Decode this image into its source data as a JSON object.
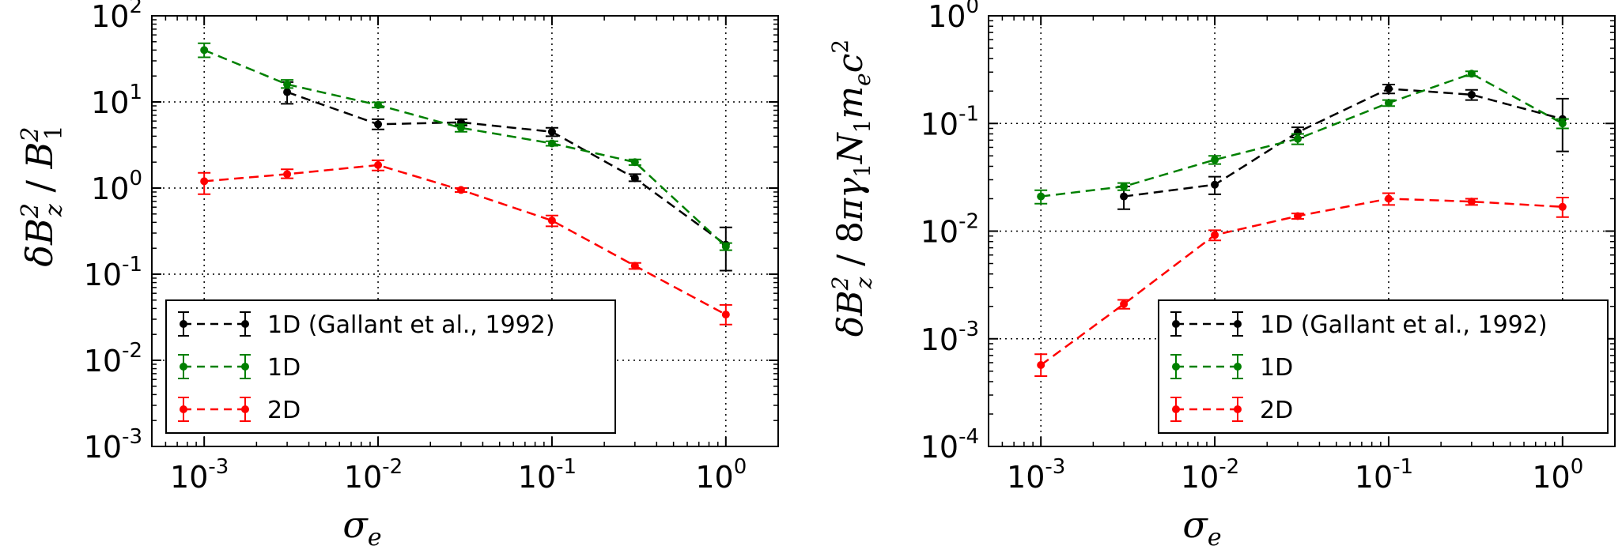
{
  "chart_data": [
    {
      "type": "line",
      "title": "",
      "xlabel": "σ_e",
      "ylabel": "δB_z^2 / B_1^2",
      "xscale": "log",
      "yscale": "log",
      "xlim": [
        0.0005,
        2
      ],
      "ylim": [
        0.001,
        100
      ],
      "x_ticks": [
        {
          "value": 0.001,
          "base": "10",
          "exp": "-3"
        },
        {
          "value": 0.01,
          "base": "10",
          "exp": "-2"
        },
        {
          "value": 0.1,
          "base": "10",
          "exp": "-1"
        },
        {
          "value": 1,
          "base": "10",
          "exp": "0"
        }
      ],
      "y_ticks": [
        {
          "value": 0.001,
          "base": "10",
          "exp": "-3"
        },
        {
          "value": 0.01,
          "base": "10",
          "exp": "-2"
        },
        {
          "value": 0.1,
          "base": "10",
          "exp": "-1"
        },
        {
          "value": 1,
          "base": "10",
          "exp": "0"
        },
        {
          "value": 10,
          "base": "10",
          "exp": "1"
        },
        {
          "value": 100,
          "base": "10",
          "exp": "2"
        }
      ],
      "grid": true,
      "legend_position": "lower-left",
      "series": [
        {
          "name": "1D (Gallant et al., 1992)",
          "color": "#000000",
          "style": "dashed",
          "points": [
            {
              "x": 0.003,
              "y": 13,
              "lo": 9.5,
              "hi": 17
            },
            {
              "x": 0.01,
              "y": 5.5,
              "lo": 4.8,
              "hi": 6.3
            },
            {
              "x": 0.03,
              "y": 5.8,
              "lo": 5.3,
              "hi": 6.3
            },
            {
              "x": 0.1,
              "y": 4.5,
              "lo": 4.0,
              "hi": 5.0
            },
            {
              "x": 0.3,
              "y": 1.3,
              "lo": 1.2,
              "hi": 1.45
            },
            {
              "x": 1.0,
              "y": 0.22,
              "lo": 0.11,
              "hi": 0.35
            }
          ]
        },
        {
          "name": "1D",
          "color": "#008000",
          "style": "dashed",
          "points": [
            {
              "x": 0.001,
              "y": 40,
              "lo": 33,
              "hi": 48
            },
            {
              "x": 0.003,
              "y": 16,
              "lo": 14.5,
              "hi": 18
            },
            {
              "x": 0.01,
              "y": 9.2,
              "lo": 8.6,
              "hi": 9.9
            },
            {
              "x": 0.03,
              "y": 5.0,
              "lo": 4.5,
              "hi": 5.5
            },
            {
              "x": 0.1,
              "y": 3.3,
              "lo": 3.1,
              "hi": 3.5
            },
            {
              "x": 0.3,
              "y": 2.0,
              "lo": 1.85,
              "hi": 2.15
            },
            {
              "x": 1.0,
              "y": 0.21,
              "lo": 0.19,
              "hi": 0.23
            }
          ]
        },
        {
          "name": "2D",
          "color": "#ff0000",
          "style": "dashed",
          "points": [
            {
              "x": 0.001,
              "y": 1.2,
              "lo": 0.85,
              "hi": 1.5
            },
            {
              "x": 0.003,
              "y": 1.45,
              "lo": 1.3,
              "hi": 1.65
            },
            {
              "x": 0.01,
              "y": 1.85,
              "lo": 1.6,
              "hi": 2.1
            },
            {
              "x": 0.03,
              "y": 0.95,
              "lo": 0.9,
              "hi": 1.0
            },
            {
              "x": 0.1,
              "y": 0.42,
              "lo": 0.36,
              "hi": 0.48
            },
            {
              "x": 0.3,
              "y": 0.125,
              "lo": 0.115,
              "hi": 0.135
            },
            {
              "x": 1.0,
              "y": 0.034,
              "lo": 0.026,
              "hi": 0.044
            }
          ]
        }
      ]
    },
    {
      "type": "line",
      "title": "",
      "xlabel": "σ_e",
      "ylabel": "δB_z^2 / 8πγ_1 N_1 m_e c^2",
      "xscale": "log",
      "yscale": "log",
      "xlim": [
        0.0005,
        2
      ],
      "ylim": [
        0.0001,
        1
      ],
      "x_ticks": [
        {
          "value": 0.001,
          "base": "10",
          "exp": "-3"
        },
        {
          "value": 0.01,
          "base": "10",
          "exp": "-2"
        },
        {
          "value": 0.1,
          "base": "10",
          "exp": "-1"
        },
        {
          "value": 1,
          "base": "10",
          "exp": "0"
        }
      ],
      "y_ticks": [
        {
          "value": 0.0001,
          "base": "10",
          "exp": "-4"
        },
        {
          "value": 0.001,
          "base": "10",
          "exp": "-3"
        },
        {
          "value": 0.01,
          "base": "10",
          "exp": "-2"
        },
        {
          "value": 0.1,
          "base": "10",
          "exp": "-1"
        },
        {
          "value": 1,
          "base": "10",
          "exp": "0"
        }
      ],
      "grid": true,
      "legend_position": "lower-right",
      "series": [
        {
          "name": "1D (Gallant et al., 1992)",
          "color": "#000000",
          "style": "dashed",
          "points": [
            {
              "x": 0.003,
              "y": 0.021,
              "lo": 0.016,
              "hi": 0.026
            },
            {
              "x": 0.01,
              "y": 0.027,
              "lo": 0.022,
              "hi": 0.032
            },
            {
              "x": 0.03,
              "y": 0.083,
              "lo": 0.074,
              "hi": 0.092
            },
            {
              "x": 0.1,
              "y": 0.21,
              "lo": 0.19,
              "hi": 0.23
            },
            {
              "x": 0.3,
              "y": 0.185,
              "lo": 0.165,
              "hi": 0.205
            },
            {
              "x": 1.0,
              "y": 0.11,
              "lo": 0.055,
              "hi": 0.17
            }
          ]
        },
        {
          "name": "1D",
          "color": "#008000",
          "style": "dashed",
          "points": [
            {
              "x": 0.001,
              "y": 0.021,
              "lo": 0.018,
              "hi": 0.024
            },
            {
              "x": 0.003,
              "y": 0.026,
              "lo": 0.024,
              "hi": 0.028
            },
            {
              "x": 0.01,
              "y": 0.046,
              "lo": 0.042,
              "hi": 0.05
            },
            {
              "x": 0.03,
              "y": 0.072,
              "lo": 0.064,
              "hi": 0.08
            },
            {
              "x": 0.1,
              "y": 0.155,
              "lo": 0.145,
              "hi": 0.165
            },
            {
              "x": 0.3,
              "y": 0.29,
              "lo": 0.275,
              "hi": 0.305
            },
            {
              "x": 1.0,
              "y": 0.1,
              "lo": 0.09,
              "hi": 0.11
            }
          ]
        },
        {
          "name": "2D",
          "color": "#ff0000",
          "style": "dashed",
          "points": [
            {
              "x": 0.001,
              "y": 0.00057,
              "lo": 0.00045,
              "hi": 0.00072
            },
            {
              "x": 0.003,
              "y": 0.0021,
              "lo": 0.0019,
              "hi": 0.0023
            },
            {
              "x": 0.01,
              "y": 0.0092,
              "lo": 0.0082,
              "hi": 0.0102
            },
            {
              "x": 0.03,
              "y": 0.0138,
              "lo": 0.013,
              "hi": 0.0146
            },
            {
              "x": 0.1,
              "y": 0.02,
              "lo": 0.0175,
              "hi": 0.0225
            },
            {
              "x": 0.3,
              "y": 0.0188,
              "lo": 0.0175,
              "hi": 0.02
            },
            {
              "x": 1.0,
              "y": 0.0168,
              "lo": 0.0135,
              "hi": 0.0205
            }
          ]
        }
      ]
    }
  ]
}
